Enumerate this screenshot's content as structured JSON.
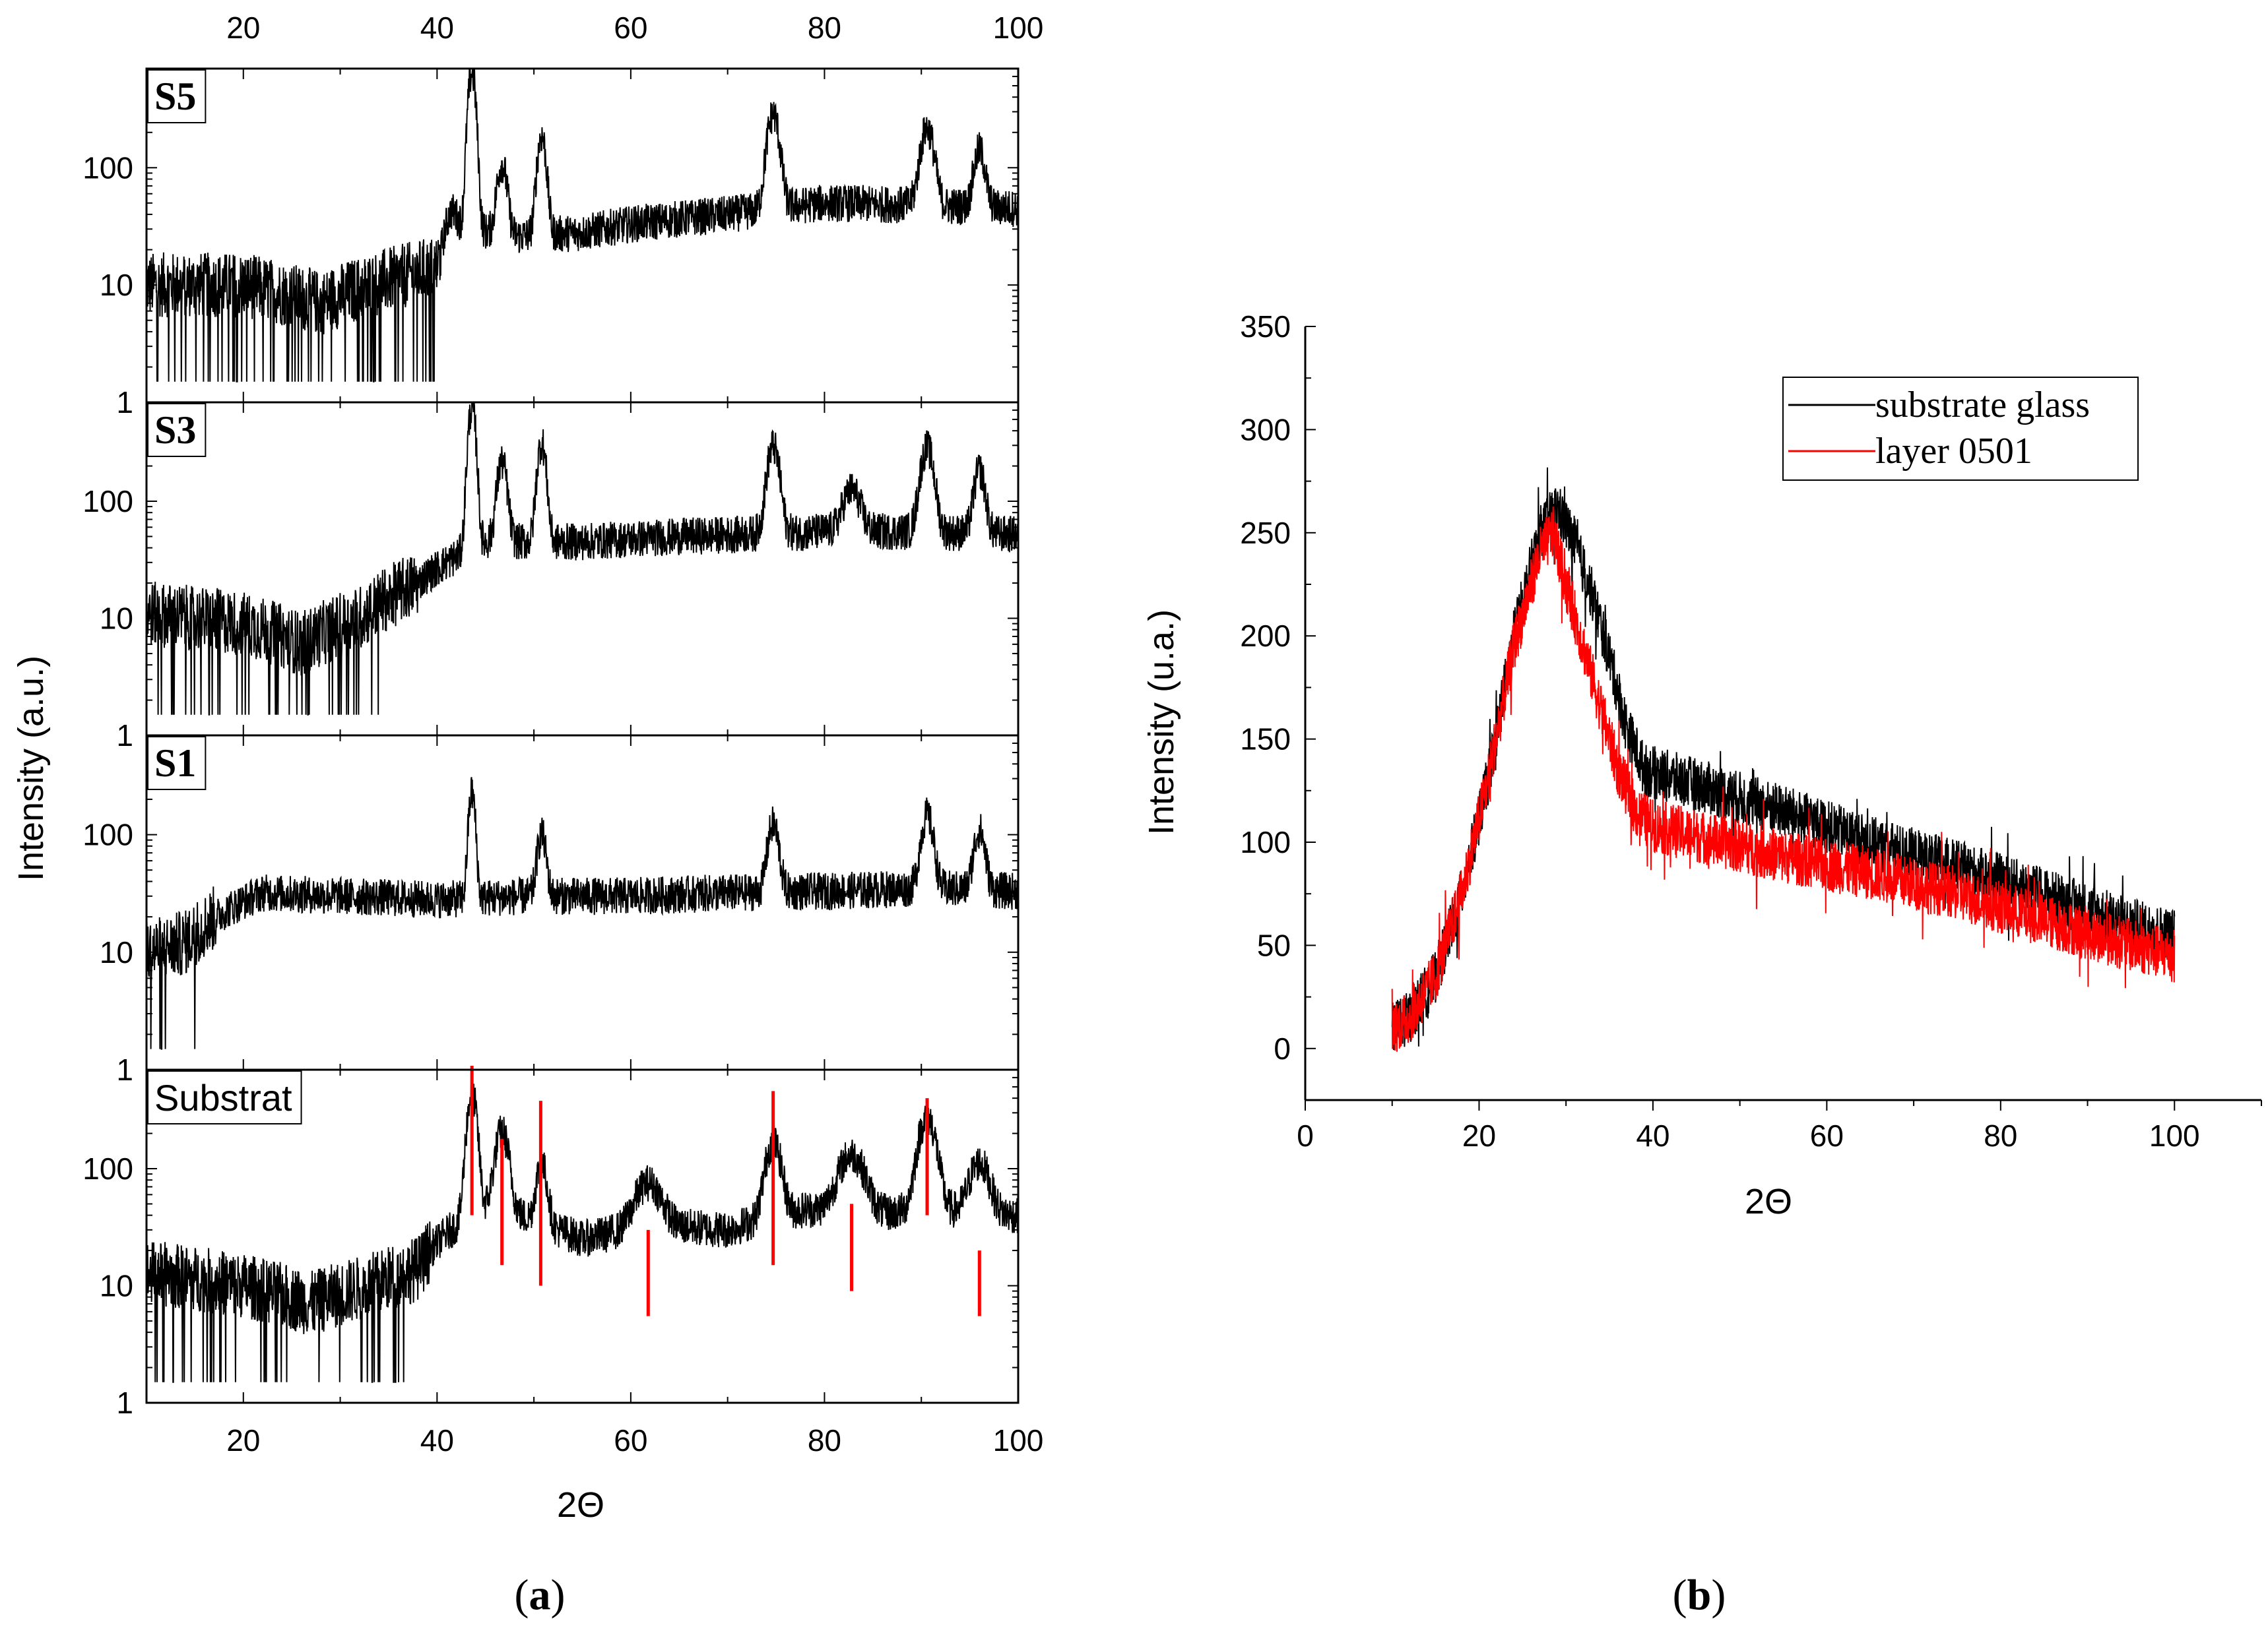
{
  "chart_data": [
    {
      "id": "a",
      "type": "line",
      "caption": "a",
      "xlabel": "2Θ",
      "ylabel": "Intensity (a.u.)",
      "xlim": [
        10,
        100
      ],
      "x_ticks": [
        20,
        40,
        60,
        80,
        100
      ],
      "yscale": "log",
      "ylim": [
        1,
        700
      ],
      "y_tick_labels": [
        "1",
        "10",
        "100"
      ],
      "top_tick_labels": [
        "20",
        "40",
        "60",
        "80",
        "100"
      ],
      "bottom_tick_labels": [
        "20",
        "40",
        "60",
        "80",
        "100"
      ],
      "panels": [
        {
          "label": "S5",
          "label_style": "serif-bold",
          "series_color": "#000000",
          "baseline": [
            [
              10,
              10
            ],
            [
              20,
              10
            ],
            [
              28,
              7
            ],
            [
              35,
              11
            ],
            [
              40,
              14
            ],
            [
              43,
              30
            ],
            [
              48,
              26
            ],
            [
              55,
              28
            ],
            [
              60,
              33
            ],
            [
              70,
              40
            ],
            [
              80,
              50
            ],
            [
              90,
              48
            ],
            [
              100,
              45
            ]
          ],
          "peaks": [
            [
              41.5,
              20,
              0.6
            ],
            [
              43.6,
              620,
              0.35
            ],
            [
              46.7,
              80,
              0.45
            ],
            [
              50.8,
              160,
              0.4
            ],
            [
              74.7,
              240,
              0.55
            ],
            [
              90.6,
              170,
              0.6
            ],
            [
              96.0,
              95,
              0.5
            ]
          ]
        },
        {
          "label": "S3",
          "label_style": "serif-bold",
          "series_color": "#000000",
          "baseline": [
            [
              10,
              11
            ],
            [
              20,
              9
            ],
            [
              26,
              6
            ],
            [
              32,
              10
            ],
            [
              38,
              20
            ],
            [
              41,
              30
            ],
            [
              45,
              45
            ],
            [
              55,
              45
            ],
            [
              65,
              50
            ],
            [
              80,
              55
            ],
            [
              90,
              55
            ],
            [
              100,
              52
            ]
          ],
          "peaks": [
            [
              43.6,
              600,
              0.35
            ],
            [
              46.7,
              170,
              0.45
            ],
            [
              50.8,
              270,
              0.4
            ],
            [
              74.7,
              240,
              0.55
            ],
            [
              82.8,
              70,
              0.8
            ],
            [
              90.6,
              230,
              0.6
            ],
            [
              96.0,
              130,
              0.5
            ]
          ]
        },
        {
          "label": "S1",
          "label_style": "serif-bold",
          "series_color": "#000000",
          "baseline": [
            [
              10,
              10
            ],
            [
              14,
              12
            ],
            [
              18,
              22
            ],
            [
              22,
              32
            ],
            [
              30,
              30
            ],
            [
              40,
              28
            ],
            [
              50,
              30
            ],
            [
              60,
              30
            ],
            [
              70,
              32
            ],
            [
              80,
              33
            ],
            [
              90,
              35
            ],
            [
              100,
              33
            ]
          ],
          "peaks": [
            [
              43.6,
              200,
              0.3
            ],
            [
              50.8,
              70,
              0.4
            ],
            [
              74.7,
              90,
              0.5
            ],
            [
              90.6,
              110,
              0.55
            ],
            [
              96.0,
              75,
              0.5
            ]
          ]
        },
        {
          "label": "Substrat",
          "label_style": "sans",
          "series_color": "#000000",
          "baseline": [
            [
              10,
              13
            ],
            [
              20,
              10
            ],
            [
              27,
              7
            ],
            [
              33,
              10
            ],
            [
              38,
              14
            ],
            [
              41,
              28
            ],
            [
              46,
              50
            ],
            [
              50,
              35
            ],
            [
              55,
              25
            ],
            [
              60,
              30
            ],
            [
              65,
              32
            ],
            [
              70,
              30
            ],
            [
              78,
              45
            ],
            [
              85,
              40
            ],
            [
              90,
              45
            ],
            [
              100,
              40
            ]
          ],
          "peaks": [
            [
              43.6,
              400,
              0.45
            ],
            [
              46.7,
              160,
              0.6
            ],
            [
              50.8,
              75,
              0.5
            ],
            [
              61.8,
              45,
              1.2
            ],
            [
              74.7,
              130,
              0.7
            ],
            [
              82.8,
              90,
              1.2
            ],
            [
              90.6,
              230,
              0.8
            ],
            [
              96.0,
              70,
              0.9
            ]
          ],
          "reference_lines": {
            "color": "#ff0000",
            "lines": [
              {
                "x": 43.6,
                "y_top": 950,
                "y_bottom": 40
              },
              {
                "x": 46.7,
                "y_top": 180,
                "y_bottom": 15
              },
              {
                "x": 50.7,
                "y_top": 380,
                "y_bottom": 10
              },
              {
                "x": 61.8,
                "y_top": 30,
                "y_bottom": 5.5
              },
              {
                "x": 74.7,
                "y_top": 460,
                "y_bottom": 15
              },
              {
                "x": 82.8,
                "y_top": 50,
                "y_bottom": 9
              },
              {
                "x": 90.6,
                "y_top": 400,
                "y_bottom": 40
              },
              {
                "x": 96.0,
                "y_top": 20,
                "y_bottom": 5.5
              }
            ]
          }
        }
      ]
    },
    {
      "id": "b",
      "type": "line",
      "caption": "b",
      "xlabel": "2Θ",
      "ylabel": "Intensity (u.a.)",
      "xlim": [
        0,
        110
      ],
      "x_ticks": [
        0,
        20,
        40,
        60,
        80,
        100
      ],
      "x_tick_labels": [
        "0",
        "20",
        "40",
        "60",
        "80",
        "100"
      ],
      "ylim": [
        -25,
        350
      ],
      "y_ticks": [
        0,
        50,
        100,
        150,
        200,
        250,
        300,
        350
      ],
      "y_tick_labels": [
        "0",
        "50",
        "100",
        "150",
        "200",
        "250",
        "300",
        "350"
      ],
      "legend": {
        "location": "top-right",
        "entries": [
          "substrate glass",
          "layer 0501"
        ]
      },
      "series": [
        {
          "name": "substrate glass",
          "color": "#000000",
          "x_range": [
            10,
            100
          ],
          "profile": [
            [
              10,
              10
            ],
            [
              12,
              15
            ],
            [
              15,
              35
            ],
            [
              18,
              75
            ],
            [
              21,
              130
            ],
            [
              24,
              200
            ],
            [
              27,
              250
            ],
            [
              29,
              262
            ],
            [
              31,
              245
            ],
            [
              33,
              220
            ],
            [
              35,
              190
            ],
            [
              37,
              155
            ],
            [
              39,
              135
            ],
            [
              45,
              128
            ],
            [
              55,
              115
            ],
            [
              65,
              100
            ],
            [
              75,
              88
            ],
            [
              85,
              75
            ],
            [
              95,
              60
            ],
            [
              100,
              55
            ]
          ],
          "noise": 13
        },
        {
          "name": "layer 0501",
          "color": "#ff0000",
          "x_range": [
            10,
            100
          ],
          "profile": [
            [
              10,
              10
            ],
            [
              12,
              15
            ],
            [
              15,
              35
            ],
            [
              18,
              75
            ],
            [
              21,
              130
            ],
            [
              24,
              195
            ],
            [
              27,
              240
            ],
            [
              28.5,
              250
            ],
            [
              30,
              225
            ],
            [
              32,
              195
            ],
            [
              34,
              165
            ],
            [
              36,
              135
            ],
            [
              38,
              115
            ],
            [
              40,
              108
            ],
            [
              45,
              103
            ],
            [
              55,
              93
            ],
            [
              65,
              85
            ],
            [
              75,
              75
            ],
            [
              85,
              62
            ],
            [
              95,
              50
            ],
            [
              100,
              45
            ]
          ],
          "noise": 13
        }
      ]
    }
  ]
}
